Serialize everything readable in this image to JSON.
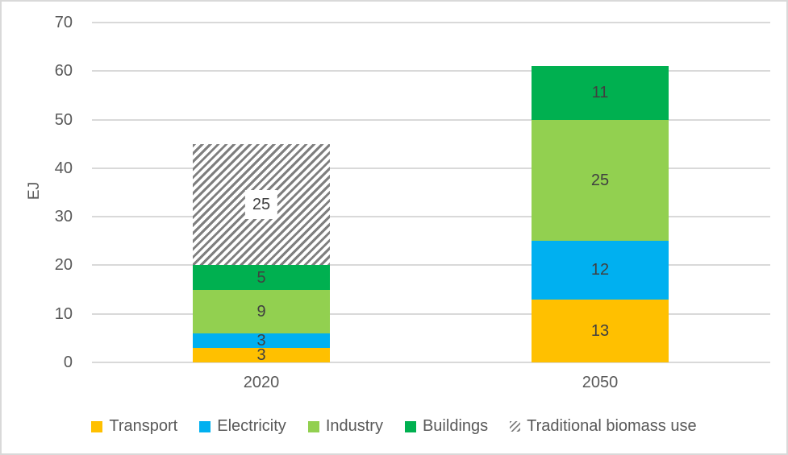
{
  "chart_data": {
    "type": "bar",
    "subtype": "stacked-column",
    "title": "",
    "ylabel": "EJ",
    "xlabel": "",
    "ylim": [
      0,
      70
    ],
    "yticks": [
      0,
      10,
      20,
      30,
      40,
      50,
      60,
      70
    ],
    "grid": true,
    "legend_position": "bottom",
    "categories": [
      "2020",
      "2050"
    ],
    "series": [
      {
        "name": "Transport",
        "color": "#FFC000",
        "pattern": "solid",
        "values": [
          3,
          13
        ]
      },
      {
        "name": "Electricity",
        "color": "#00B0F0",
        "pattern": "solid",
        "values": [
          3,
          12
        ]
      },
      {
        "name": "Industry",
        "color": "#92D050",
        "pattern": "solid",
        "values": [
          9,
          25
        ]
      },
      {
        "name": "Buildings",
        "color": "#00B050",
        "pattern": "solid",
        "values": [
          5,
          11
        ]
      },
      {
        "name": "Traditional biomass use",
        "color": "#7F7F7F",
        "pattern": "diagonal-hatch",
        "values": [
          25,
          0
        ]
      }
    ],
    "totals": [
      45,
      61
    ],
    "colors": {
      "gridline": "#D9D9D9",
      "axis_text": "#595959",
      "data_label_text": "#404040",
      "chart_border": "#D9D9D9",
      "hatch_stripe": "#7F7F7F",
      "background": "#FFFFFF"
    }
  }
}
